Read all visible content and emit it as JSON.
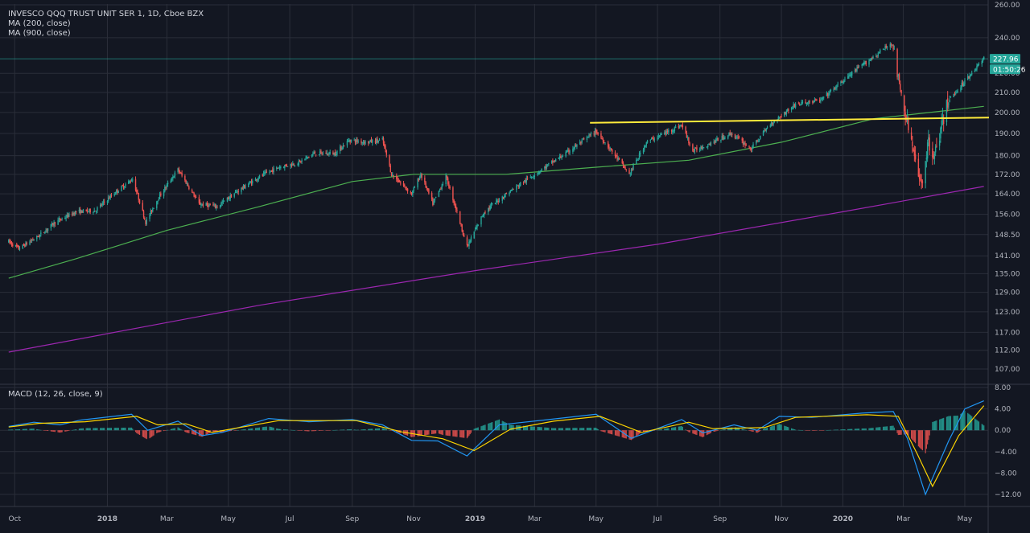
{
  "chart_data": [
    {
      "type": "candlestick",
      "legend": [
        "INVESCO QQQ TRUST UNIT SER 1, 1D, Cboe BZX",
        "MA (200, close)",
        "MA (900, close)"
      ],
      "y_axis_ticks": [
        107,
        112,
        117,
        123,
        129,
        135,
        141,
        148.5,
        156,
        164,
        172,
        180,
        190,
        200,
        210,
        220,
        240,
        260
      ],
      "y_axis_labels": [
        "107.00",
        "112.00",
        "117.00",
        "123.00",
        "129.00",
        "135.00",
        "141.00",
        "148.50",
        "156.00",
        "164.00",
        "172.00",
        "180.00",
        "190.00",
        "200.00",
        "210.00",
        "220.00",
        "240.00",
        "260.00"
      ],
      "ylim": [
        103,
        262
      ],
      "x_axis_labels": [
        "Oct",
        "2018",
        "Mar",
        "May",
        "Jul",
        "Sep",
        "Nov",
        "2019",
        "Mar",
        "May",
        "Jul",
        "Sep",
        "Nov",
        "2020",
        "Mar",
        "May"
      ],
      "x_axis_bold": [
        "2018",
        "2019",
        "2020"
      ],
      "last_price": "227.96",
      "countdown": "01:50:26",
      "price_path": [
        [
          "2017-09-25",
          146
        ],
        [
          "2017-10-05",
          143.5
        ],
        [
          "2017-10-25",
          148
        ],
        [
          "2017-11-10",
          153
        ],
        [
          "2017-12-01",
          157
        ],
        [
          "2017-12-20",
          157.5
        ],
        [
          "2018-01-10",
          165
        ],
        [
          "2018-01-26",
          170
        ],
        [
          "2018-02-08",
          153
        ],
        [
          "2018-02-20",
          162
        ],
        [
          "2018-03-12",
          174
        ],
        [
          "2018-04-02",
          160
        ],
        [
          "2018-04-20",
          159
        ],
        [
          "2018-05-10",
          165
        ],
        [
          "2018-06-01",
          171
        ],
        [
          "2018-06-20",
          175
        ],
        [
          "2018-07-10",
          177
        ],
        [
          "2018-07-25",
          181
        ],
        [
          "2018-08-15",
          181
        ],
        [
          "2018-08-29",
          187
        ],
        [
          "2018-09-15",
          186
        ],
        [
          "2018-10-01",
          187
        ],
        [
          "2018-10-10",
          172
        ],
        [
          "2018-10-30",
          164
        ],
        [
          "2018-11-08",
          172
        ],
        [
          "2018-11-20",
          160
        ],
        [
          "2018-12-03",
          171
        ],
        [
          "2018-12-24",
          144
        ],
        [
          "2019-01-10",
          157
        ],
        [
          "2019-02-01",
          164
        ],
        [
          "2019-03-01",
          172
        ],
        [
          "2019-04-01",
          181
        ],
        [
          "2019-05-01",
          191
        ],
        [
          "2019-06-03",
          172
        ],
        [
          "2019-06-20",
          186
        ],
        [
          "2019-07-25",
          194
        ],
        [
          "2019-08-05",
          182
        ],
        [
          "2019-08-15",
          184
        ],
        [
          "2019-09-12",
          190
        ],
        [
          "2019-10-02",
          183
        ],
        [
          "2019-10-20",
          194
        ],
        [
          "2019-11-15",
          204
        ],
        [
          "2019-12-10",
          206
        ],
        [
          "2020-01-10",
          220
        ],
        [
          "2020-02-19",
          237
        ],
        [
          "2020-02-27",
          210
        ],
        [
          "2020-03-09",
          186
        ],
        [
          "2020-03-16",
          170
        ],
        [
          "2020-03-20",
          170
        ],
        [
          "2020-03-26",
          186
        ],
        [
          "2020-04-01",
          180
        ],
        [
          "2020-04-14",
          205
        ],
        [
          "2020-05-01",
          216
        ],
        [
          "2020-05-20",
          228
        ]
      ],
      "ma_200": [
        [
          "2017-09-25",
          133.5
        ],
        [
          "2017-12-01",
          140
        ],
        [
          "2018-03-01",
          150
        ],
        [
          "2018-06-01",
          159
        ],
        [
          "2018-09-01",
          169
        ],
        [
          "2018-11-01",
          172
        ],
        [
          "2019-02-01",
          172
        ],
        [
          "2019-05-01",
          175
        ],
        [
          "2019-08-01",
          178
        ],
        [
          "2019-11-01",
          186
        ],
        [
          "2020-02-01",
          197
        ],
        [
          "2020-05-20",
          203
        ]
      ],
      "ma_900": [
        [
          "2017-09-25",
          111.5
        ],
        [
          "2018-06-01",
          125
        ],
        [
          "2019-01-01",
          136
        ],
        [
          "2019-07-01",
          145
        ],
        [
          "2020-01-01",
          157
        ],
        [
          "2020-05-20",
          167
        ]
      ],
      "trendline": [
        [
          "2019-04-25",
          195
        ],
        [
          "2020-05-25",
          197.5
        ]
      ],
      "macd": {
        "legend": "MACD (12, 26, close, 9)",
        "y_axis_ticks": [
          -12,
          -8,
          -4,
          0,
          4,
          8
        ],
        "y_axis_labels": [
          "−12.00",
          "−8.00",
          "−4.00",
          "0.00",
          "4.00",
          "8.00"
        ],
        "ylim": [
          -14,
          8.5
        ],
        "macd_line": [
          [
            "2017-09-25",
            0.7
          ],
          [
            "2017-10-20",
            1.5
          ],
          [
            "2017-11-15",
            1.0
          ],
          [
            "2017-12-05",
            1.9
          ],
          [
            "2018-01-25",
            3.0
          ],
          [
            "2018-02-10",
            0.0
          ],
          [
            "2018-03-12",
            1.7
          ],
          [
            "2018-04-05",
            -1.0
          ],
          [
            "2018-04-25",
            -0.4
          ],
          [
            "2018-06-10",
            2.2
          ],
          [
            "2018-07-20",
            1.6
          ],
          [
            "2018-09-01",
            2.0
          ],
          [
            "2018-10-01",
            1.0
          ],
          [
            "2018-10-30",
            -1.9
          ],
          [
            "2018-11-25",
            -2.0
          ],
          [
            "2018-12-24",
            -4.8
          ],
          [
            "2019-01-25",
            1.0
          ],
          [
            "2019-03-15",
            2.0
          ],
          [
            "2019-05-01",
            3.0
          ],
          [
            "2019-06-05",
            -1.5
          ],
          [
            "2019-07-25",
            2.0
          ],
          [
            "2019-08-15",
            -0.5
          ],
          [
            "2019-09-15",
            1.0
          ],
          [
            "2019-10-08",
            0.0
          ],
          [
            "2019-10-30",
            2.6
          ],
          [
            "2019-12-01",
            2.4
          ],
          [
            "2020-01-20",
            3.2
          ],
          [
            "2020-02-20",
            3.5
          ],
          [
            "2020-03-05",
            -1.5
          ],
          [
            "2020-03-23",
            -12.0
          ],
          [
            "2020-04-15",
            -2.0
          ],
          [
            "2020-05-01",
            4.0
          ],
          [
            "2020-05-20",
            5.5
          ]
        ],
        "signal_line": [
          [
            "2017-09-25",
            0.6
          ],
          [
            "2017-10-25",
            1.3
          ],
          [
            "2017-12-10",
            1.6
          ],
          [
            "2018-01-30",
            2.6
          ],
          [
            "2018-02-20",
            1.0
          ],
          [
            "2018-03-20",
            1.2
          ],
          [
            "2018-04-15",
            -0.4
          ],
          [
            "2018-06-20",
            1.8
          ],
          [
            "2018-09-05",
            1.8
          ],
          [
            "2018-10-20",
            -0.3
          ],
          [
            "2018-11-30",
            -1.6
          ],
          [
            "2018-12-31",
            -3.8
          ],
          [
            "2019-02-05",
            0.2
          ],
          [
            "2019-03-20",
            1.7
          ],
          [
            "2019-05-05",
            2.6
          ],
          [
            "2019-06-15",
            -0.4
          ],
          [
            "2019-08-01",
            1.5
          ],
          [
            "2019-08-25",
            0.3
          ],
          [
            "2019-10-15",
            0.5
          ],
          [
            "2019-11-15",
            2.4
          ],
          [
            "2020-01-25",
            2.9
          ],
          [
            "2020-02-25",
            2.6
          ],
          [
            "2020-03-15",
            -4.5
          ],
          [
            "2020-03-30",
            -10.5
          ],
          [
            "2020-04-25",
            -1.0
          ],
          [
            "2020-05-20",
            4.6
          ]
        ]
      }
    }
  ],
  "colors": {
    "background": "#131722",
    "grid": "#2a2e39",
    "up": "#26a69a",
    "down": "#ef5350",
    "ma_200": "#4caf50",
    "ma_900": "#9c27b0",
    "trendline": "#ffeb3b",
    "macd_line": "#2196f3",
    "signal_line": "#ffd600",
    "price_tag": "#26a69a"
  }
}
